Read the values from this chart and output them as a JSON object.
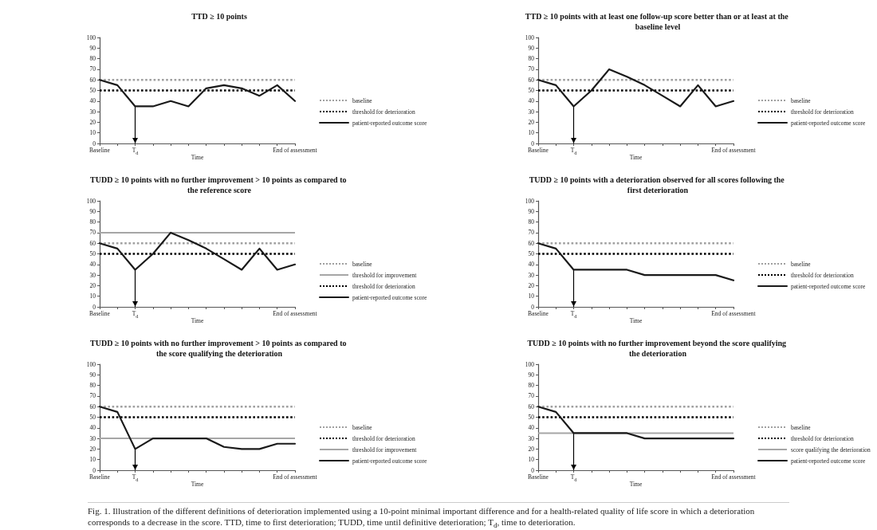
{
  "chart_data": [
    {
      "type": "line",
      "title": "TTD ≥ 10 points",
      "xlabel": "Time",
      "categories": [
        "Baseline",
        null,
        "T$_{d}$",
        null,
        null,
        null,
        null,
        null,
        null,
        null,
        null,
        "End of assessment"
      ],
      "series": [
        {
          "name": "patient-reported outcome score",
          "color": "#1a1a1a",
          "values": [
            60,
            55,
            35,
            35,
            40,
            35,
            52,
            55,
            52,
            45,
            55,
            40
          ]
        }
      ],
      "ref_lines": [
        {
          "axis": "y",
          "value": 60,
          "label": "baseline",
          "color": "#a0a0a0",
          "line_style": "dotted"
        },
        {
          "axis": "y",
          "value": 50,
          "label": "threshold for deterioration",
          "color": "#000000",
          "line_style": "dotted"
        },
        {
          "axis": "x",
          "value": "T$_{d}$",
          "color": "#000000",
          "line_style": "solid"
        }
      ],
      "ylim": [
        0,
        100
      ],
      "yticks": [
        0,
        10,
        20,
        30,
        40,
        50,
        60,
        70,
        80,
        90,
        100
      ],
      "legend": "right",
      "marker": "none",
      "line_style": "solid",
      "grid": false
    },
    {
      "type": "line",
      "title": "TTD ≥ 10 points with at least one follow-up score better than or at least at the baseline level",
      "xlabel": "Time",
      "categories": [
        "Baseline",
        null,
        "T$_{d}$",
        null,
        null,
        null,
        null,
        null,
        null,
        null,
        null,
        "End of assessment"
      ],
      "series": [
        {
          "name": "patient-reported outcome score",
          "color": "#1a1a1a",
          "values": [
            60,
            55,
            35,
            50,
            70,
            63,
            55,
            45,
            35,
            55,
            35,
            40
          ]
        }
      ],
      "ref_lines": [
        {
          "axis": "y",
          "value": 60,
          "label": "baseline",
          "color": "#a0a0a0",
          "line_style": "dotted"
        },
        {
          "axis": "y",
          "value": 50,
          "label": "threshold for deterioration",
          "color": "#000000",
          "line_style": "dotted"
        },
        {
          "axis": "x",
          "value": "T$_{d}$",
          "color": "#000000",
          "line_style": "solid"
        }
      ],
      "ylim": [
        0,
        100
      ],
      "yticks": [
        0,
        10,
        20,
        30,
        40,
        50,
        60,
        70,
        80,
        90,
        100
      ],
      "legend": "right",
      "marker": "none",
      "line_style": "solid",
      "grid": false
    },
    {
      "type": "line",
      "title": "TUDD ≥ 10 points with no further improvement > 10 points as compared to the reference score",
      "xlabel": "Time",
      "categories": [
        "Baseline",
        null,
        "T$_{d}$",
        null,
        null,
        null,
        null,
        null,
        null,
        null,
        null,
        "End of assessment"
      ],
      "series": [
        {
          "name": "patient-reported outcome score",
          "color": "#1a1a1a",
          "values": [
            60,
            55,
            35,
            50,
            70,
            63,
            55,
            45,
            35,
            55,
            35,
            40
          ]
        }
      ],
      "ref_lines": [
        {
          "axis": "y",
          "value": 60,
          "label": "baseline",
          "color": "#a0a0a0",
          "line_style": "dotted"
        },
        {
          "axis": "y",
          "value": 70,
          "label": "threshold for improvement",
          "color": "#a6a6a6",
          "line_style": "solid"
        },
        {
          "axis": "y",
          "value": 50,
          "label": "threshold for deterioration",
          "color": "#000000",
          "line_style": "dotted"
        },
        {
          "axis": "x",
          "value": "T$_{d}$",
          "color": "#000000",
          "line_style": "solid"
        }
      ],
      "ylim": [
        0,
        100
      ],
      "yticks": [
        0,
        10,
        20,
        30,
        40,
        50,
        60,
        70,
        80,
        90,
        100
      ],
      "legend": "right",
      "marker": "none",
      "line_style": "solid",
      "grid": false
    },
    {
      "type": "line",
      "title": "TUDD ≥ 10 points with a deterioration observed for all scores following the first deterioration",
      "xlabel": "Time",
      "categories": [
        "Baseline",
        null,
        "T$_{d}$",
        null,
        null,
        null,
        null,
        null,
        null,
        null,
        null,
        "End of assessment"
      ],
      "series": [
        {
          "name": "patient-reported outcome score",
          "color": "#1a1a1a",
          "values": [
            60,
            55,
            35,
            35,
            35,
            35,
            30,
            30,
            30,
            30,
            30,
            25
          ]
        }
      ],
      "ref_lines": [
        {
          "axis": "y",
          "value": 60,
          "label": "baseline",
          "color": "#a0a0a0",
          "line_style": "dotted"
        },
        {
          "axis": "y",
          "value": 50,
          "label": "threshold for deterioration",
          "color": "#000000",
          "line_style": "dotted"
        },
        {
          "axis": "x",
          "value": "T$_{d}$",
          "color": "#000000",
          "line_style": "solid"
        }
      ],
      "ylim": [
        0,
        100
      ],
      "yticks": [
        0,
        10,
        20,
        30,
        40,
        50,
        60,
        70,
        80,
        90,
        100
      ],
      "legend": "right",
      "marker": "none",
      "line_style": "solid",
      "grid": false
    },
    {
      "type": "line",
      "title": "TUDD ≥ 10 points with no further improvement > 10 points as compared to the score qualifying the deterioration",
      "xlabel": "Time",
      "categories": [
        "Baseline",
        null,
        "T$_{d}$",
        null,
        null,
        null,
        null,
        null,
        null,
        null,
        null,
        "End of assessment"
      ],
      "series": [
        {
          "name": "patient-reported outcome score",
          "color": "#1a1a1a",
          "values": [
            60,
            55,
            20,
            30,
            30,
            30,
            30,
            22,
            20,
            20,
            25,
            25
          ]
        }
      ],
      "ref_lines": [
        {
          "axis": "y",
          "value": 60,
          "label": "baseline",
          "color": "#a0a0a0",
          "line_style": "dotted"
        },
        {
          "axis": "y",
          "value": 50,
          "label": "threshold for deterioration",
          "color": "#000000",
          "line_style": "dotted"
        },
        {
          "axis": "y",
          "value": 30,
          "label": "threshold for improvement",
          "color": "#a6a6a6",
          "line_style": "solid"
        },
        {
          "axis": "x",
          "value": "T$_{d}$",
          "color": "#000000",
          "line_style": "solid"
        }
      ],
      "ylim": [
        0,
        100
      ],
      "yticks": [
        0,
        10,
        20,
        30,
        40,
        50,
        60,
        70,
        80,
        90,
        100
      ],
      "legend": "right",
      "marker": "none",
      "line_style": "solid",
      "grid": false
    },
    {
      "type": "line",
      "title": "TUDD ≥ 10 points with no further improvement beyond the score qualifying the deterioration",
      "xlabel": "Time",
      "categories": [
        "Baseline",
        null,
        "T$_{d}$",
        null,
        null,
        null,
        null,
        null,
        null,
        null,
        null,
        "End of assessment"
      ],
      "series": [
        {
          "name": "patient-reported outcome score",
          "color": "#1a1a1a",
          "values": [
            60,
            55,
            35,
            35,
            35,
            35,
            30,
            30,
            30,
            30,
            30,
            30
          ]
        }
      ],
      "ref_lines": [
        {
          "axis": "y",
          "value": 60,
          "label": "baseline",
          "color": "#a0a0a0",
          "line_style": "dotted"
        },
        {
          "axis": "y",
          "value": 50,
          "label": "threshold for deterioration",
          "color": "#000000",
          "line_style": "dotted"
        },
        {
          "axis": "y",
          "value": 35,
          "label": "score qualifying the deterioration",
          "color": "#a6a6a6",
          "line_style": "solid"
        },
        {
          "axis": "x",
          "value": "T$_{d}$",
          "color": "#000000",
          "line_style": "solid"
        }
      ],
      "ylim": [
        0,
        100
      ],
      "yticks": [
        0,
        10,
        20,
        30,
        40,
        50,
        60,
        70,
        80,
        90,
        100
      ],
      "legend": "right",
      "marker": "none",
      "line_style": "solid",
      "grid": false,
      "annotations": [
        "Fig. 1. Illustration of the different definitions of deterioration implemented using a 10-point minimal important difference and for a health-related quality of life score in which a deterioration corresponds to a decrease in the score. TTD, time to first deterioration; TUDD, time until definitive deterioration; T$_{d}$, time to deterioration."
      ]
    }
  ]
}
